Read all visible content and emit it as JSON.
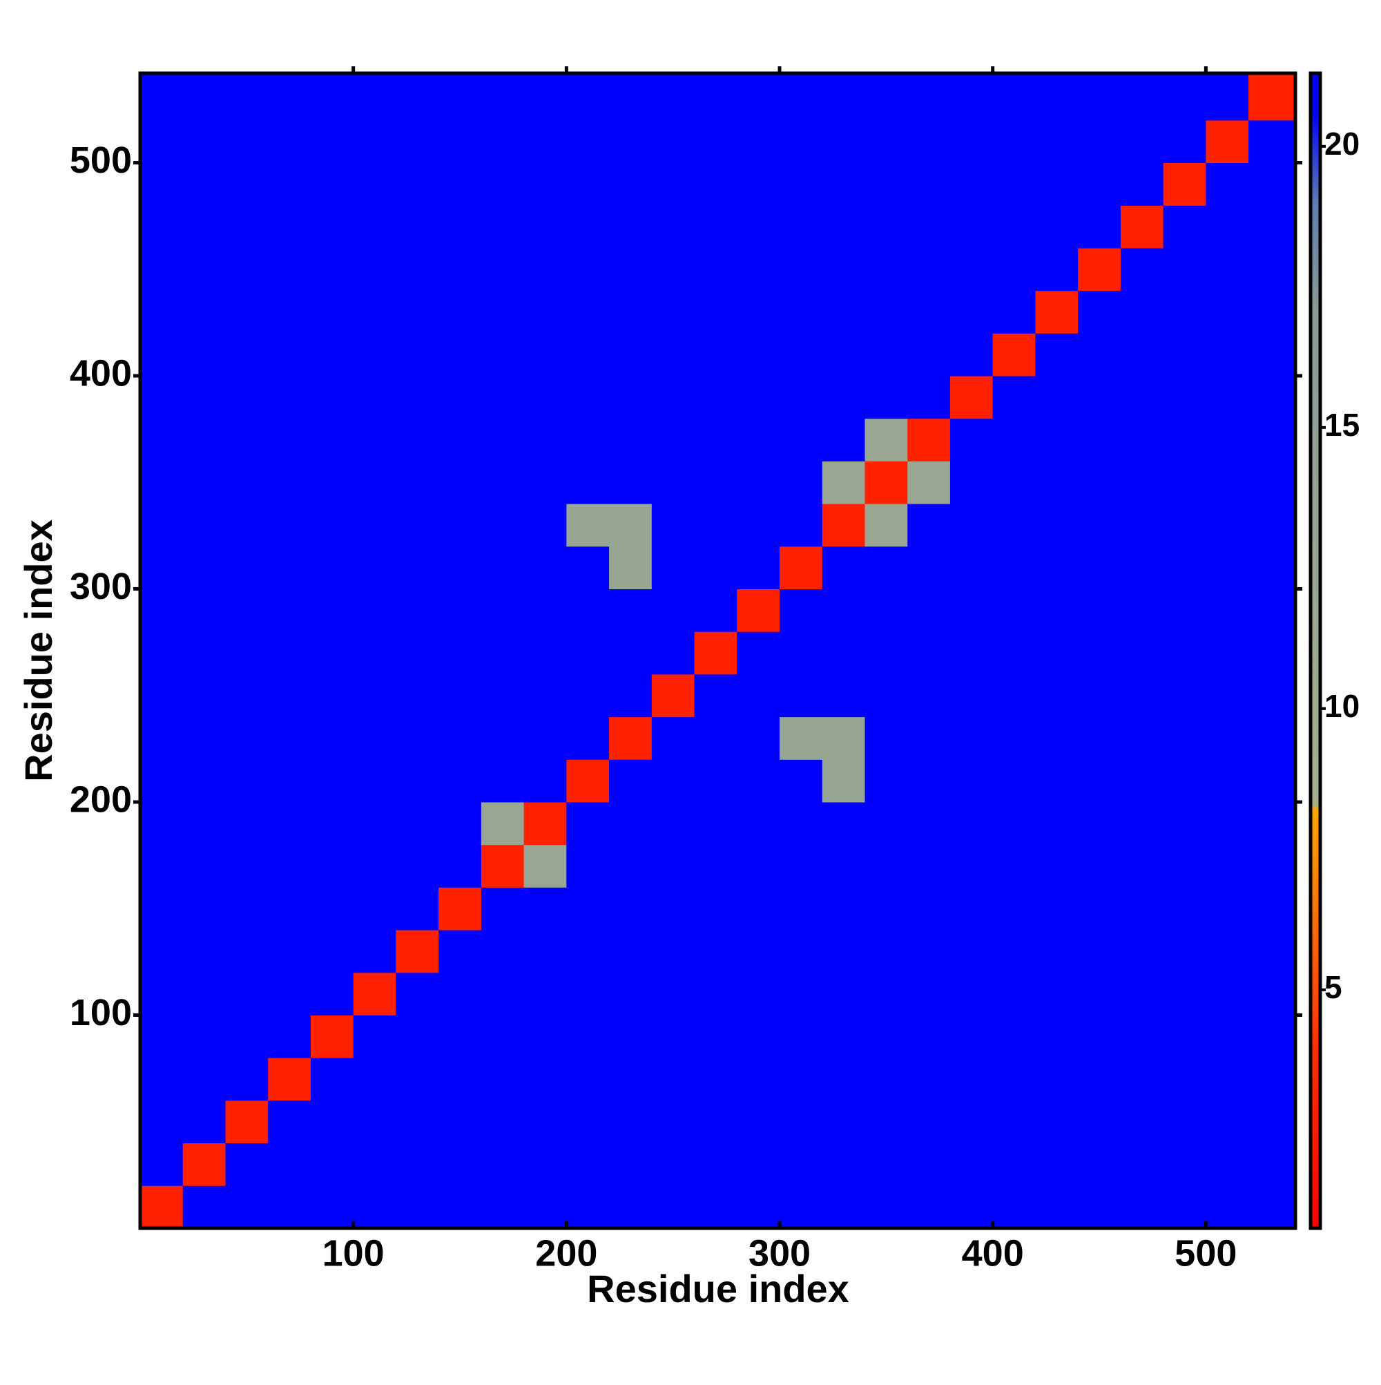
{
  "chart_data": {
    "type": "heatmap",
    "x_label": "Residue index",
    "y_label": "Residue index",
    "xlim": [
      0,
      542
    ],
    "ylim": [
      0,
      542
    ],
    "xticks": [
      100,
      200,
      300,
      400,
      500
    ],
    "yticks": [
      100,
      200,
      300,
      400,
      500
    ],
    "edges": [
      0,
      20,
      40,
      60,
      80,
      100,
      120,
      140,
      160,
      180,
      200,
      220,
      240,
      260,
      280,
      300,
      320,
      340,
      360,
      380,
      400,
      420,
      440,
      460,
      480,
      500,
      520,
      542
    ],
    "values": [
      [
        3,
        21,
        21,
        21,
        21,
        21,
        21,
        21,
        21,
        21,
        21,
        21,
        21,
        21,
        21,
        21,
        21,
        21,
        21,
        21,
        21,
        21,
        21,
        21,
        21,
        21,
        21
      ],
      [
        21,
        3,
        21,
        21,
        21,
        21,
        21,
        21,
        21,
        21,
        21,
        21,
        21,
        21,
        21,
        21,
        21,
        21,
        21,
        21,
        21,
        21,
        21,
        21,
        21,
        21,
        21
      ],
      [
        21,
        21,
        3,
        21,
        21,
        21,
        21,
        21,
        21,
        21,
        21,
        21,
        21,
        21,
        21,
        21,
        21,
        21,
        21,
        21,
        21,
        21,
        21,
        21,
        21,
        21,
        21
      ],
      [
        21,
        21,
        21,
        3,
        21,
        21,
        21,
        21,
        21,
        21,
        21,
        21,
        21,
        21,
        21,
        21,
        21,
        21,
        21,
        21,
        21,
        21,
        21,
        21,
        21,
        21,
        21
      ],
      [
        21,
        21,
        21,
        21,
        3,
        21,
        21,
        21,
        21,
        21,
        21,
        21,
        21,
        21,
        21,
        21,
        21,
        21,
        21,
        21,
        21,
        21,
        21,
        21,
        21,
        21,
        21
      ],
      [
        21,
        21,
        21,
        21,
        21,
        3,
        21,
        21,
        21,
        21,
        21,
        21,
        21,
        21,
        21,
        21,
        21,
        21,
        21,
        21,
        21,
        21,
        21,
        21,
        21,
        21,
        21
      ],
      [
        21,
        21,
        21,
        21,
        21,
        21,
        3,
        21,
        21,
        21,
        21,
        21,
        21,
        21,
        21,
        21,
        21,
        21,
        21,
        21,
        21,
        21,
        21,
        21,
        21,
        21,
        21
      ],
      [
        21,
        21,
        21,
        21,
        21,
        21,
        21,
        3,
        21,
        21,
        21,
        21,
        21,
        21,
        21,
        21,
        21,
        21,
        21,
        21,
        21,
        21,
        21,
        21,
        21,
        21,
        21
      ],
      [
        21,
        21,
        21,
        21,
        21,
        21,
        21,
        21,
        3,
        12,
        21,
        21,
        21,
        21,
        21,
        21,
        21,
        21,
        21,
        21,
        21,
        21,
        21,
        21,
        21,
        21,
        21
      ],
      [
        21,
        21,
        21,
        21,
        21,
        21,
        21,
        21,
        12,
        3,
        21,
        21,
        21,
        21,
        21,
        21,
        21,
        21,
        21,
        21,
        21,
        21,
        21,
        21,
        21,
        21,
        21
      ],
      [
        21,
        21,
        21,
        21,
        21,
        21,
        21,
        21,
        21,
        21,
        3,
        21,
        21,
        21,
        21,
        21,
        13,
        21,
        21,
        21,
        21,
        21,
        21,
        21,
        21,
        21,
        21
      ],
      [
        21,
        21,
        21,
        21,
        21,
        21,
        21,
        21,
        21,
        21,
        21,
        3,
        21,
        21,
        21,
        13,
        13,
        21,
        21,
        21,
        21,
        21,
        21,
        21,
        21,
        21,
        21
      ],
      [
        21,
        21,
        21,
        21,
        21,
        21,
        21,
        21,
        21,
        21,
        21,
        21,
        3,
        21,
        21,
        21,
        21,
        21,
        21,
        21,
        21,
        21,
        21,
        21,
        21,
        21,
        21
      ],
      [
        21,
        21,
        21,
        21,
        21,
        21,
        21,
        21,
        21,
        21,
        21,
        21,
        21,
        3,
        21,
        21,
        21,
        21,
        21,
        21,
        21,
        21,
        21,
        21,
        21,
        21,
        21
      ],
      [
        21,
        21,
        21,
        21,
        21,
        21,
        21,
        21,
        21,
        21,
        21,
        21,
        21,
        21,
        3,
        21,
        21,
        21,
        21,
        21,
        21,
        21,
        21,
        21,
        21,
        21,
        21
      ],
      [
        21,
        21,
        21,
        21,
        21,
        21,
        21,
        21,
        21,
        21,
        21,
        13,
        21,
        21,
        21,
        3,
        21,
        21,
        21,
        21,
        21,
        21,
        21,
        21,
        21,
        21,
        21
      ],
      [
        21,
        21,
        21,
        21,
        21,
        21,
        21,
        21,
        21,
        21,
        13,
        13,
        21,
        21,
        21,
        21,
        3,
        12,
        21,
        21,
        21,
        21,
        21,
        21,
        21,
        21,
        21
      ],
      [
        21,
        21,
        21,
        21,
        21,
        21,
        21,
        21,
        21,
        21,
        21,
        21,
        21,
        21,
        21,
        21,
        12,
        3,
        12,
        21,
        21,
        21,
        21,
        21,
        21,
        21,
        21
      ],
      [
        21,
        21,
        21,
        21,
        21,
        21,
        21,
        21,
        21,
        21,
        21,
        21,
        21,
        21,
        21,
        21,
        21,
        12,
        3,
        21,
        21,
        21,
        21,
        21,
        21,
        21,
        21
      ],
      [
        21,
        21,
        21,
        21,
        21,
        21,
        21,
        21,
        21,
        21,
        21,
        21,
        21,
        21,
        21,
        21,
        21,
        21,
        21,
        3,
        21,
        21,
        21,
        21,
        21,
        21,
        21
      ],
      [
        21,
        21,
        21,
        21,
        21,
        21,
        21,
        21,
        21,
        21,
        21,
        21,
        21,
        21,
        21,
        21,
        21,
        21,
        21,
        21,
        3,
        21,
        21,
        21,
        21,
        21,
        21
      ],
      [
        21,
        21,
        21,
        21,
        21,
        21,
        21,
        21,
        21,
        21,
        21,
        21,
        21,
        21,
        21,
        21,
        21,
        21,
        21,
        21,
        21,
        3,
        21,
        21,
        21,
        21,
        21
      ],
      [
        21,
        21,
        21,
        21,
        21,
        21,
        21,
        21,
        21,
        21,
        21,
        21,
        21,
        21,
        21,
        21,
        21,
        21,
        21,
        21,
        21,
        21,
        3,
        21,
        21,
        21,
        21
      ],
      [
        21,
        21,
        21,
        21,
        21,
        21,
        21,
        21,
        21,
        21,
        21,
        21,
        21,
        21,
        21,
        21,
        21,
        21,
        21,
        21,
        21,
        21,
        21,
        3,
        21,
        21,
        21
      ],
      [
        21,
        21,
        21,
        21,
        21,
        21,
        21,
        21,
        21,
        21,
        21,
        21,
        21,
        21,
        21,
        21,
        21,
        21,
        21,
        21,
        21,
        21,
        21,
        21,
        3,
        21,
        21
      ],
      [
        21,
        21,
        21,
        21,
        21,
        21,
        21,
        21,
        21,
        21,
        21,
        21,
        21,
        21,
        21,
        21,
        21,
        21,
        21,
        21,
        21,
        21,
        21,
        21,
        21,
        3,
        21
      ],
      [
        21,
        21,
        21,
        21,
        21,
        21,
        21,
        21,
        21,
        21,
        21,
        21,
        21,
        21,
        21,
        21,
        21,
        21,
        21,
        21,
        21,
        21,
        21,
        21,
        21,
        21,
        3
      ]
    ],
    "clim": [
      0.76,
      21.3
    ],
    "cticks": [
      5,
      10,
      15,
      20
    ],
    "colorscale": [
      [
        0.76,
        "#ff0000"
      ],
      [
        4,
        "#ff3000"
      ],
      [
        8.2,
        "#ffa500"
      ],
      [
        8.3,
        "#a3b08f"
      ],
      [
        17,
        "#8c9c96"
      ],
      [
        19,
        "#5e7cb0"
      ],
      [
        20.6,
        "#0000ff"
      ],
      [
        21.3,
        "#0000ff"
      ]
    ]
  }
}
